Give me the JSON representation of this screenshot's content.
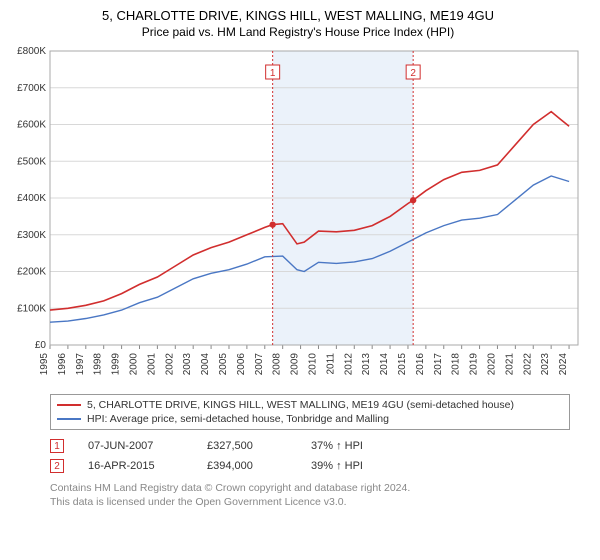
{
  "title": "5, CHARLOTTE DRIVE, KINGS HILL, WEST MALLING, ME19 4GU",
  "subtitle": "Price paid vs. HM Land Registry's House Price Index (HPI)",
  "chart": {
    "type": "line",
    "plot_bg": "#ffffff",
    "grid_color": "#d8d8d8",
    "border_color": "#aaaaaa",
    "shade_color": "#dbe7f6",
    "shade_range_years": [
      2007.44,
      2015.29
    ],
    "x": {
      "min": 1995,
      "max": 2024.5,
      "ticks": [
        1995,
        1996,
        1997,
        1998,
        1999,
        2000,
        2001,
        2002,
        2003,
        2004,
        2005,
        2006,
        2007,
        2008,
        2009,
        2010,
        2011,
        2012,
        2013,
        2014,
        2015,
        2016,
        2017,
        2018,
        2019,
        2020,
        2021,
        2022,
        2023,
        2024
      ],
      "tick_labels": [
        "1995",
        "1996",
        "1997",
        "1998",
        "1999",
        "2000",
        "2001",
        "2002",
        "2003",
        "2004",
        "2005",
        "2006",
        "2007",
        "2008",
        "2009",
        "2010",
        "2011",
        "2012",
        "2013",
        "2014",
        "2015",
        "2016",
        "2017",
        "2018",
        "2019",
        "2020",
        "2021",
        "2022",
        "2023",
        "2024"
      ],
      "label_fontsize": 10,
      "tick_rotation": -90
    },
    "y": {
      "min": 0,
      "max": 800000,
      "ticks": [
        0,
        100000,
        200000,
        300000,
        400000,
        500000,
        600000,
        700000,
        800000
      ],
      "tick_labels": [
        "£0",
        "£100K",
        "£200K",
        "£300K",
        "£400K",
        "£500K",
        "£600K",
        "£700K",
        "£800K"
      ],
      "label_fontsize": 10
    },
    "series": [
      {
        "id": "price_paid",
        "label": "5, CHARLOTTE DRIVE, KINGS HILL, WEST MALLING, ME19 4GU (semi-detached house)",
        "color": "#d12e2e",
        "line_width": 1.6,
        "x": [
          1995,
          1996,
          1997,
          1998,
          1999,
          2000,
          2001,
          2002,
          2003,
          2004,
          2005,
          2006,
          2007,
          2007.44,
          2008,
          2008.8,
          2009.2,
          2010,
          2011,
          2012,
          2013,
          2014,
          2015,
          2015.29,
          2016,
          2017,
          2018,
          2019,
          2020,
          2021,
          2022,
          2023,
          2023.5,
          2024
        ],
        "y": [
          95000,
          100000,
          108000,
          120000,
          140000,
          165000,
          185000,
          215000,
          245000,
          265000,
          280000,
          300000,
          320000,
          327500,
          330000,
          275000,
          280000,
          310000,
          308000,
          312000,
          325000,
          350000,
          385000,
          394000,
          420000,
          450000,
          470000,
          475000,
          490000,
          545000,
          600000,
          635000,
          615000,
          595000
        ]
      },
      {
        "id": "hpi",
        "label": "HPI: Average price, semi-detached house, Tonbridge and Malling",
        "color": "#4a77c4",
        "line_width": 1.4,
        "x": [
          1995,
          1996,
          1997,
          1998,
          1999,
          2000,
          2001,
          2002,
          2003,
          2004,
          2005,
          2006,
          2007,
          2008,
          2008.8,
          2009.2,
          2010,
          2011,
          2012,
          2013,
          2014,
          2015,
          2016,
          2017,
          2018,
          2019,
          2020,
          2021,
          2022,
          2023,
          2024
        ],
        "y": [
          62000,
          65000,
          72000,
          82000,
          95000,
          115000,
          130000,
          155000,
          180000,
          195000,
          205000,
          220000,
          240000,
          242000,
          205000,
          200000,
          225000,
          222000,
          226000,
          235000,
          255000,
          280000,
          305000,
          325000,
          340000,
          345000,
          355000,
          395000,
          435000,
          460000,
          445000
        ]
      }
    ],
    "markers": [
      {
        "n": "1",
        "year": 2007.44,
        "price": 327500
      },
      {
        "n": "2",
        "year": 2015.29,
        "price": 394000
      }
    ]
  },
  "legend": {
    "items": [
      {
        "color": "#d12e2e",
        "label": "5, CHARLOTTE DRIVE, KINGS HILL, WEST MALLING, ME19 4GU (semi-detached house)"
      },
      {
        "color": "#4a77c4",
        "label": "HPI: Average price, semi-detached house, Tonbridge and Malling"
      }
    ]
  },
  "transactions": [
    {
      "n": "1",
      "date": "07-JUN-2007",
      "price": "£327,500",
      "pct": "37% ↑ HPI"
    },
    {
      "n": "2",
      "date": "16-APR-2015",
      "price": "£394,000",
      "pct": "39% ↑ HPI"
    }
  ],
  "footnote_l1": "Contains HM Land Registry data © Crown copyright and database right 2024.",
  "footnote_l2": "This data is licensed under the Open Government Licence v3.0."
}
